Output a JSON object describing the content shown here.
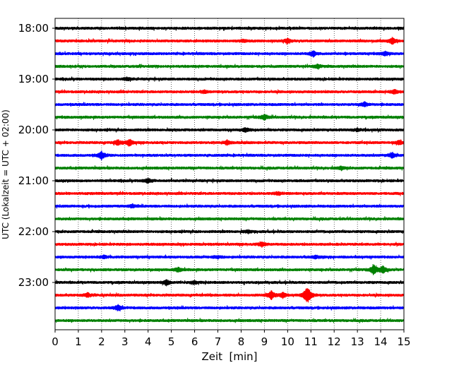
{
  "chart_data": {
    "type": "line",
    "title": "",
    "xlabel": "Zeit  [min]",
    "ylabel": "UTC (Lokalzeit = UTC + 02:00)",
    "xlim": [
      0,
      15
    ],
    "x_ticks": [
      0,
      1,
      2,
      3,
      4,
      5,
      6,
      7,
      8,
      9,
      10,
      11,
      12,
      13,
      14,
      15
    ],
    "x_tick_labels": [
      "0",
      "1",
      "2",
      "3",
      "4",
      "5",
      "6",
      "7",
      "8",
      "9",
      "10",
      "11",
      "12",
      "13",
      "14",
      "15"
    ],
    "y_tick_labels": [
      "18:00",
      "19:00",
      "20:00",
      "21:00",
      "22:00",
      "23:00"
    ],
    "trace_interval_min": 15,
    "start_time": "18:00",
    "grid": {
      "x": true,
      "y": false,
      "style": "dotted"
    },
    "colors": [
      "#000000",
      "#ff0000",
      "#0000ff",
      "#008000"
    ],
    "series": [
      {
        "start": "18:00",
        "color": "#000000",
        "events": []
      },
      {
        "start": "18:15",
        "color": "#ff0000",
        "events": [
          [
            8.1,
            2
          ],
          [
            10.0,
            3
          ],
          [
            14.5,
            5
          ]
        ]
      },
      {
        "start": "18:30",
        "color": "#0000ff",
        "events": [
          [
            11.1,
            4
          ],
          [
            14.2,
            3
          ]
        ]
      },
      {
        "start": "18:45",
        "color": "#008000",
        "events": [
          [
            11.3,
            3
          ]
        ]
      },
      {
        "start": "19:00",
        "color": "#000000",
        "events": [
          [
            3.1,
            2
          ]
        ]
      },
      {
        "start": "19:15",
        "color": "#ff0000",
        "events": [
          [
            6.4,
            2
          ],
          [
            14.6,
            3
          ]
        ]
      },
      {
        "start": "19:30",
        "color": "#0000ff",
        "events": [
          [
            13.3,
            3
          ]
        ]
      },
      {
        "start": "19:45",
        "color": "#008000",
        "events": [
          [
            9.0,
            4
          ]
        ]
      },
      {
        "start": "20:00",
        "color": "#000000",
        "events": [
          [
            8.2,
            3
          ],
          [
            13.0,
            2
          ]
        ]
      },
      {
        "start": "20:15",
        "color": "#ff0000",
        "events": [
          [
            2.7,
            4
          ],
          [
            3.2,
            5
          ],
          [
            7.4,
            3
          ],
          [
            14.8,
            3
          ]
        ]
      },
      {
        "start": "20:30",
        "color": "#0000ff",
        "events": [
          [
            2.0,
            6
          ],
          [
            14.5,
            4
          ]
        ]
      },
      {
        "start": "20:45",
        "color": "#008000",
        "events": [
          [
            12.3,
            2
          ]
        ]
      },
      {
        "start": "21:00",
        "color": "#000000",
        "events": [
          [
            4.0,
            3
          ]
        ]
      },
      {
        "start": "21:15",
        "color": "#ff0000",
        "events": [
          [
            9.6,
            2
          ]
        ]
      },
      {
        "start": "21:30",
        "color": "#0000ff",
        "events": [
          [
            3.3,
            2
          ]
        ]
      },
      {
        "start": "21:45",
        "color": "#008000",
        "events": []
      },
      {
        "start": "22:00",
        "color": "#000000",
        "events": [
          [
            8.3,
            2
          ]
        ]
      },
      {
        "start": "22:15",
        "color": "#ff0000",
        "events": [
          [
            8.9,
            3
          ]
        ]
      },
      {
        "start": "22:30",
        "color": "#0000ff",
        "events": [
          [
            2.1,
            2
          ],
          [
            7.0,
            2
          ],
          [
            11.2,
            2
          ]
        ]
      },
      {
        "start": "22:45",
        "color": "#008000",
        "events": [
          [
            5.3,
            3
          ],
          [
            13.7,
            7
          ],
          [
            14.1,
            5
          ]
        ]
      },
      {
        "start": "23:00",
        "color": "#000000",
        "events": [
          [
            4.8,
            4
          ],
          [
            6.0,
            2
          ]
        ]
      },
      {
        "start": "23:15",
        "color": "#ff0000",
        "events": [
          [
            1.4,
            3
          ],
          [
            9.3,
            6
          ],
          [
            9.8,
            4
          ],
          [
            10.8,
            8
          ],
          [
            10.9,
            6
          ]
        ]
      },
      {
        "start": "23:30",
        "color": "#0000ff",
        "events": [
          [
            2.7,
            4
          ]
        ]
      },
      {
        "start": "23:45",
        "color": "#008000",
        "events": []
      }
    ]
  }
}
